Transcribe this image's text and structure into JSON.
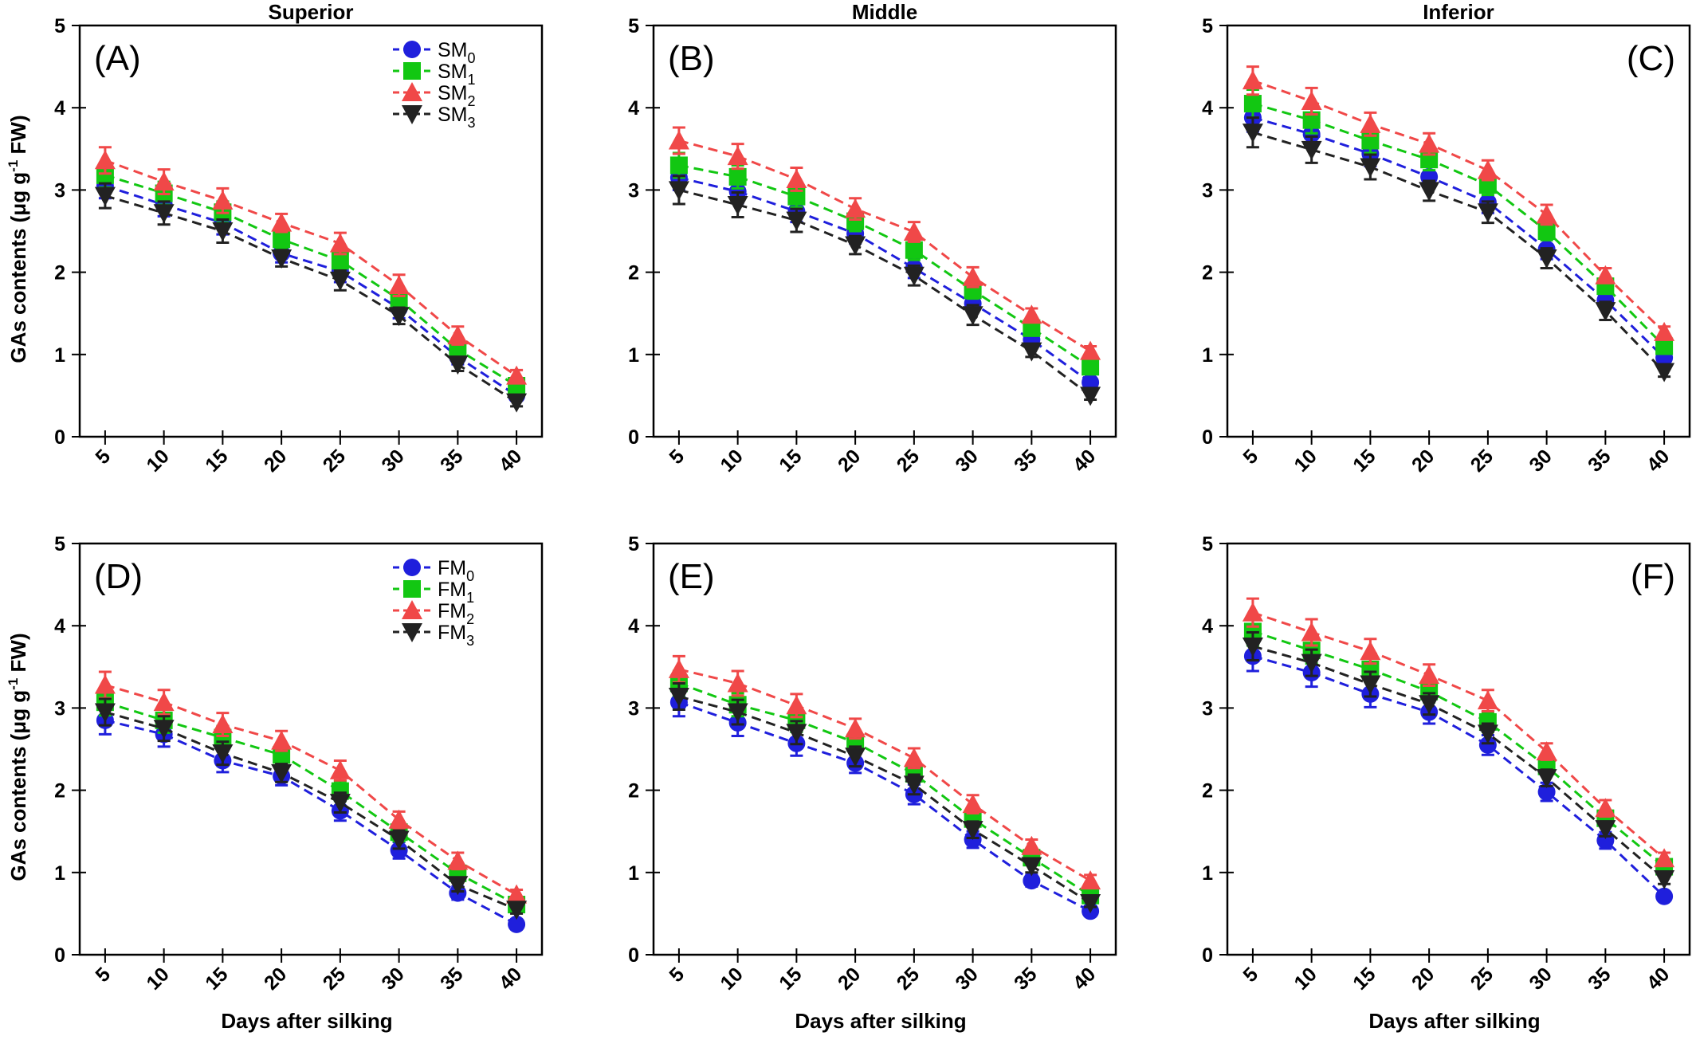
{
  "figure": {
    "x_label": "Days after silking",
    "y_label_parts": [
      "GAs contents (μg g",
      "-1",
      " FW)"
    ]
  },
  "colors": {
    "M0": "#1f1fdc",
    "M1": "#12c712",
    "M2": "#f04848",
    "M3": "#222222",
    "axis": "#000000"
  },
  "chart_data": [
    {
      "type": "line",
      "panel": "(A)",
      "title": "Superior",
      "x": [
        5,
        10,
        15,
        20,
        25,
        30,
        35,
        40
      ],
      "ylim": [
        0,
        5
      ],
      "yticks": [
        0,
        1,
        2,
        3,
        4,
        5
      ],
      "legend": {
        "position": "top-right",
        "prefix": "SM",
        "entries": [
          "0",
          "1",
          "2",
          "3"
        ]
      },
      "series": [
        {
          "name": "SM0",
          "marker": "circle",
          "color_key": "M0",
          "values": [
            3.05,
            2.82,
            2.6,
            2.23,
            2.01,
            1.56,
            0.97,
            0.5
          ],
          "err": [
            0.15,
            0.14,
            0.14,
            0.11,
            0.13,
            0.12,
            0.09,
            0.06
          ]
        },
        {
          "name": "SM1",
          "marker": "square",
          "color_key": "M1",
          "values": [
            3.18,
            2.96,
            2.73,
            2.4,
            2.14,
            1.67,
            1.06,
            0.62
          ],
          "err": [
            0.15,
            0.14,
            0.13,
            0.11,
            0.12,
            0.11,
            0.09,
            0.07
          ]
        },
        {
          "name": "SM2",
          "marker": "triangle-up",
          "color_key": "M2",
          "values": [
            3.36,
            3.1,
            2.87,
            2.6,
            2.35,
            1.84,
            1.23,
            0.74
          ],
          "err": [
            0.16,
            0.15,
            0.15,
            0.11,
            0.13,
            0.13,
            0.11,
            0.07
          ]
        },
        {
          "name": "SM3",
          "marker": "triangle-down",
          "color_key": "M3",
          "values": [
            2.93,
            2.72,
            2.5,
            2.17,
            1.9,
            1.47,
            0.88,
            0.42
          ],
          "err": [
            0.15,
            0.14,
            0.14,
            0.1,
            0.12,
            0.1,
            0.08,
            0.05
          ]
        }
      ]
    },
    {
      "type": "line",
      "panel": "(B)",
      "title": "Middle",
      "x": [
        5,
        10,
        15,
        20,
        25,
        30,
        35,
        40
      ],
      "ylim": [
        0,
        5
      ],
      "yticks": [
        0,
        1,
        2,
        3,
        4,
        5
      ],
      "series": [
        {
          "name": "SM0",
          "marker": "circle",
          "color_key": "M0",
          "values": [
            3.15,
            2.98,
            2.74,
            2.47,
            2.05,
            1.62,
            1.18,
            0.66
          ],
          "err": [
            0.15,
            0.14,
            0.13,
            0.12,
            0.12,
            0.1,
            0.08,
            0.06
          ]
        },
        {
          "name": "SM1",
          "marker": "square",
          "color_key": "M1",
          "values": [
            3.3,
            3.16,
            2.92,
            2.62,
            2.27,
            1.78,
            1.32,
            0.85
          ],
          "err": [
            0.15,
            0.14,
            0.13,
            0.12,
            0.12,
            0.1,
            0.09,
            0.07
          ]
        },
        {
          "name": "SM2",
          "marker": "triangle-up",
          "color_key": "M2",
          "values": [
            3.6,
            3.41,
            3.13,
            2.77,
            2.49,
            1.94,
            1.48,
            1.04
          ],
          "err": [
            0.16,
            0.15,
            0.14,
            0.13,
            0.12,
            0.12,
            0.08,
            0.06
          ]
        },
        {
          "name": "SM3",
          "marker": "triangle-down",
          "color_key": "M3",
          "values": [
            3.0,
            2.82,
            2.63,
            2.33,
            1.96,
            1.48,
            1.04,
            0.5
          ],
          "err": [
            0.17,
            0.15,
            0.14,
            0.11,
            0.12,
            0.12,
            0.07,
            0.05
          ]
        }
      ]
    },
    {
      "type": "line",
      "panel": "(C)",
      "title": "Inferior",
      "x": [
        5,
        10,
        15,
        20,
        25,
        30,
        35,
        40
      ],
      "ylim": [
        0,
        5
      ],
      "yticks": [
        0,
        1,
        2,
        3,
        4,
        5
      ],
      "series": [
        {
          "name": "SM0",
          "marker": "circle",
          "color_key": "M0",
          "values": [
            3.88,
            3.68,
            3.44,
            3.16,
            2.85,
            2.28,
            1.66,
            0.96
          ],
          "err": [
            0.17,
            0.16,
            0.15,
            0.13,
            0.13,
            0.12,
            0.1,
            0.07
          ]
        },
        {
          "name": "SM1",
          "marker": "square",
          "color_key": "M1",
          "values": [
            4.05,
            3.85,
            3.6,
            3.37,
            3.06,
            2.5,
            1.83,
            1.1
          ],
          "err": [
            0.17,
            0.16,
            0.15,
            0.13,
            0.12,
            0.11,
            0.09,
            0.07
          ]
        },
        {
          "name": "SM2",
          "marker": "triangle-up",
          "color_key": "M2",
          "values": [
            4.33,
            4.08,
            3.8,
            3.56,
            3.24,
            2.7,
            1.96,
            1.27
          ],
          "err": [
            0.17,
            0.16,
            0.14,
            0.13,
            0.12,
            0.12,
            0.09,
            0.07
          ]
        },
        {
          "name": "SM3",
          "marker": "triangle-down",
          "color_key": "M3",
          "values": [
            3.7,
            3.49,
            3.28,
            2.99,
            2.73,
            2.17,
            1.53,
            0.79
          ],
          "err": [
            0.18,
            0.16,
            0.15,
            0.12,
            0.13,
            0.12,
            0.11,
            0.06
          ]
        }
      ]
    },
    {
      "type": "line",
      "panel": "(D)",
      "title": "",
      "x": [
        5,
        10,
        15,
        20,
        25,
        30,
        35,
        40
      ],
      "ylim": [
        0,
        5
      ],
      "yticks": [
        0,
        1,
        2,
        3,
        4,
        5
      ],
      "legend": {
        "position": "top-right",
        "prefix": "FM",
        "entries": [
          "0",
          "1",
          "2",
          "3"
        ]
      },
      "series": [
        {
          "name": "FM0",
          "marker": "circle",
          "color_key": "M0",
          "values": [
            2.85,
            2.68,
            2.36,
            2.17,
            1.75,
            1.27,
            0.75,
            0.37
          ],
          "err": [
            0.17,
            0.15,
            0.14,
            0.11,
            0.12,
            0.1,
            0.08,
            0.05
          ]
        },
        {
          "name": "FM1",
          "marker": "square",
          "color_key": "M1",
          "values": [
            3.07,
            2.85,
            2.64,
            2.43,
            1.99,
            1.49,
            0.99,
            0.61
          ],
          "err": [
            0.16,
            0.15,
            0.14,
            0.12,
            0.12,
            0.11,
            0.09,
            0.06
          ]
        },
        {
          "name": "FM2",
          "marker": "triangle-up",
          "color_key": "M2",
          "values": [
            3.28,
            3.07,
            2.8,
            2.6,
            2.24,
            1.64,
            1.14,
            0.73
          ],
          "err": [
            0.16,
            0.15,
            0.14,
            0.12,
            0.12,
            0.1,
            0.1,
            0.06
          ]
        },
        {
          "name": "FM3",
          "marker": "triangle-down",
          "color_key": "M3",
          "values": [
            2.95,
            2.75,
            2.45,
            2.21,
            1.85,
            1.4,
            0.85,
            0.55
          ],
          "err": [
            0.16,
            0.15,
            0.14,
            0.11,
            0.12,
            0.11,
            0.08,
            0.05
          ]
        }
      ]
    },
    {
      "type": "line",
      "panel": "(E)",
      "title": "",
      "x": [
        5,
        10,
        15,
        20,
        25,
        30,
        35,
        40
      ],
      "ylim": [
        0,
        5
      ],
      "yticks": [
        0,
        1,
        2,
        3,
        4,
        5
      ],
      "series": [
        {
          "name": "FM0",
          "marker": "circle",
          "color_key": "M0",
          "values": [
            3.07,
            2.82,
            2.57,
            2.33,
            1.95,
            1.4,
            0.9,
            0.53
          ],
          "err": [
            0.17,
            0.16,
            0.15,
            0.12,
            0.12,
            0.1,
            0.07,
            0.05
          ]
        },
        {
          "name": "FM1",
          "marker": "square",
          "color_key": "M1",
          "values": [
            3.3,
            3.04,
            2.85,
            2.58,
            2.2,
            1.65,
            1.18,
            0.72
          ],
          "err": [
            0.15,
            0.14,
            0.14,
            0.12,
            0.11,
            0.1,
            0.08,
            0.06
          ]
        },
        {
          "name": "FM2",
          "marker": "triangle-up",
          "color_key": "M2",
          "values": [
            3.47,
            3.3,
            3.03,
            2.75,
            2.39,
            1.83,
            1.32,
            0.9
          ],
          "err": [
            0.16,
            0.15,
            0.14,
            0.12,
            0.12,
            0.11,
            0.08,
            0.07
          ]
        },
        {
          "name": "FM3",
          "marker": "triangle-down",
          "color_key": "M3",
          "values": [
            3.14,
            2.95,
            2.7,
            2.41,
            2.07,
            1.52,
            1.08,
            0.63
          ],
          "err": [
            0.16,
            0.15,
            0.14,
            0.12,
            0.12,
            0.1,
            0.08,
            0.05
          ]
        }
      ]
    },
    {
      "type": "line",
      "panel": "(F)",
      "title": "",
      "x": [
        5,
        10,
        15,
        20,
        25,
        30,
        35,
        40
      ],
      "ylim": [
        0,
        5
      ],
      "yticks": [
        0,
        1,
        2,
        3,
        4,
        5
      ],
      "series": [
        {
          "name": "FM0",
          "marker": "circle",
          "color_key": "M0",
          "values": [
            3.63,
            3.43,
            3.17,
            2.95,
            2.55,
            1.98,
            1.39,
            0.71
          ],
          "err": [
            0.18,
            0.17,
            0.16,
            0.14,
            0.12,
            0.11,
            0.1,
            0.05
          ]
        },
        {
          "name": "FM1",
          "marker": "square",
          "color_key": "M1",
          "values": [
            3.93,
            3.7,
            3.47,
            3.2,
            2.83,
            2.29,
            1.66,
            1.07
          ],
          "err": [
            0.17,
            0.16,
            0.15,
            0.13,
            0.12,
            0.1,
            0.09,
            0.06
          ]
        },
        {
          "name": "FM2",
          "marker": "triangle-up",
          "color_key": "M2",
          "values": [
            4.16,
            3.92,
            3.69,
            3.4,
            3.09,
            2.47,
            1.78,
            1.17
          ],
          "err": [
            0.17,
            0.16,
            0.15,
            0.13,
            0.13,
            0.1,
            0.1,
            0.07
          ]
        },
        {
          "name": "FM3",
          "marker": "triangle-down",
          "color_key": "M3",
          "values": [
            3.75,
            3.55,
            3.29,
            3.05,
            2.69,
            2.15,
            1.53,
            0.92
          ],
          "err": [
            0.17,
            0.16,
            0.15,
            0.13,
            0.12,
            0.1,
            0.09,
            0.06
          ]
        }
      ]
    }
  ]
}
